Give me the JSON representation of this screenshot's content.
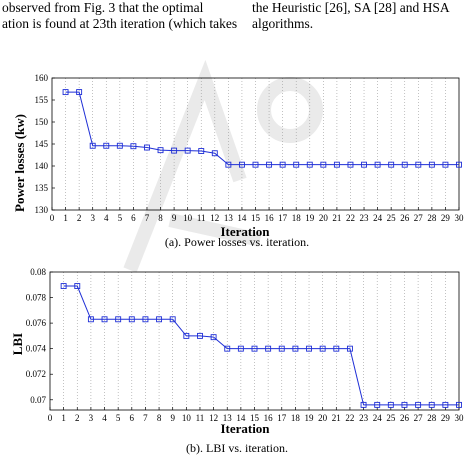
{
  "header_text": {
    "left_line1": "observed from Fig. 3 that the optimal",
    "left_line2": "ation is found at 23th iteration (which takes",
    "right_line1": "the Heuristic [26], SA [28] and HSA",
    "right_line2": "algorithms."
  },
  "colors": {
    "series": "#1f2fd6",
    "axis": "#000000",
    "grid": "#9a9a9a",
    "watermark": "#d9d9d9"
  },
  "chart_data": [
    {
      "type": "line",
      "title": "",
      "caption": "(a). Power losses vs. iteration.",
      "xlabel": "Iteration",
      "ylabel": "Power losses (kw)",
      "xlim": [
        0,
        30
      ],
      "ylim": [
        130,
        160
      ],
      "x_ticks": [
        0,
        1,
        2,
        3,
        4,
        5,
        6,
        7,
        8,
        9,
        10,
        11,
        12,
        13,
        14,
        15,
        16,
        17,
        18,
        19,
        20,
        21,
        22,
        23,
        24,
        25,
        26,
        27,
        28,
        29,
        30
      ],
      "y_ticks": [
        130,
        135,
        140,
        145,
        150,
        155,
        160
      ],
      "y_tick_labels": [
        "130",
        "135",
        "140",
        "145",
        "150",
        "155",
        "160"
      ],
      "grid": "vertical dotted",
      "marker": "square",
      "x": [
        1,
        2,
        3,
        4,
        5,
        6,
        7,
        8,
        9,
        10,
        11,
        12,
        13,
        14,
        15,
        16,
        17,
        18,
        19,
        20,
        21,
        22,
        23,
        24,
        25,
        26,
        27,
        28,
        29,
        30
      ],
      "y": [
        156.8,
        156.8,
        144.6,
        144.6,
        144.6,
        144.5,
        144.2,
        143.6,
        143.5,
        143.5,
        143.4,
        142.9,
        140.3,
        140.3,
        140.3,
        140.3,
        140.3,
        140.3,
        140.3,
        140.3,
        140.3,
        140.3,
        140.3,
        140.3,
        140.3,
        140.3,
        140.3,
        140.3,
        140.3,
        140.3
      ]
    },
    {
      "type": "line",
      "title": "",
      "caption": "(b). LBI vs. iteration.",
      "xlabel": "Iteration",
      "ylabel": "LBI",
      "xlim": [
        0,
        30
      ],
      "ylim": [
        0.0692,
        0.08
      ],
      "x_ticks": [
        0,
        1,
        2,
        3,
        4,
        5,
        6,
        7,
        8,
        9,
        10,
        11,
        12,
        13,
        14,
        15,
        16,
        17,
        18,
        19,
        20,
        21,
        22,
        23,
        24,
        25,
        26,
        27,
        28,
        29,
        30
      ],
      "y_ticks": [
        0.07,
        0.072,
        0.074,
        0.076,
        0.078,
        0.08
      ],
      "y_tick_labels": [
        "0.07",
        "0.072",
        "0.074",
        "0.076",
        "0.078",
        "0.08"
      ],
      "grid": "vertical dotted",
      "marker": "square",
      "x": [
        1,
        2,
        3,
        4,
        5,
        6,
        7,
        8,
        9,
        10,
        11,
        12,
        13,
        14,
        15,
        16,
        17,
        18,
        19,
        20,
        21,
        22,
        23,
        24,
        25,
        26,
        27,
        28,
        29,
        30
      ],
      "y": [
        0.0789,
        0.0789,
        0.0763,
        0.0763,
        0.0763,
        0.0763,
        0.0763,
        0.0763,
        0.0763,
        0.075,
        0.075,
        0.0749,
        0.074,
        0.074,
        0.074,
        0.074,
        0.074,
        0.074,
        0.074,
        0.074,
        0.074,
        0.074,
        0.0696,
        0.0696,
        0.0696,
        0.0696,
        0.0696,
        0.0696,
        0.0696,
        0.0696
      ]
    }
  ]
}
